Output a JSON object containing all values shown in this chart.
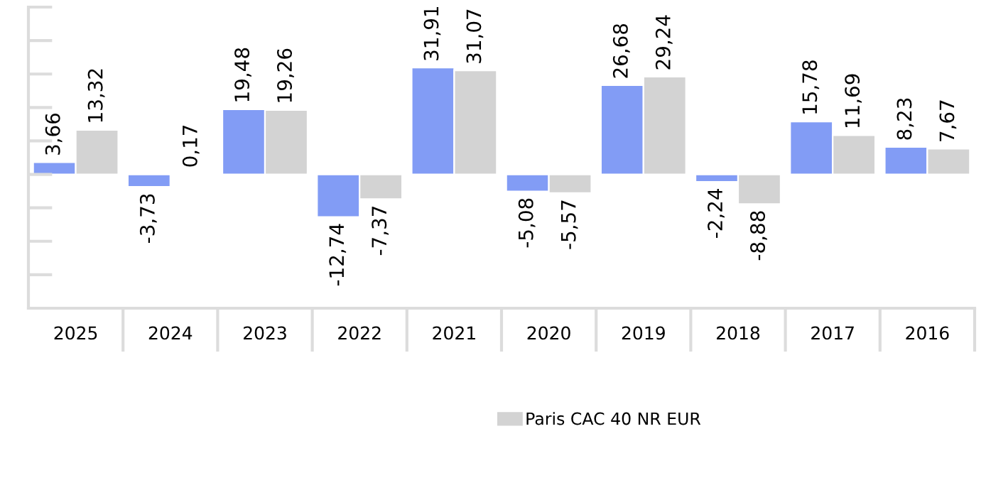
{
  "chart_data": {
    "type": "bar",
    "categories": [
      "2025",
      "2024",
      "2023",
      "2022",
      "2021",
      "2020",
      "2019",
      "2018",
      "2017",
      "2016"
    ],
    "series": [
      {
        "color": "#829cf5",
        "values": [
          3.66,
          -3.73,
          19.48,
          -12.74,
          31.91,
          -5.08,
          26.68,
          -2.24,
          15.78,
          8.23
        ],
        "value_labels": [
          "3,66",
          "-3,73",
          "19,48",
          "-12,74",
          "31,91",
          "-5,08",
          "26,68",
          "-2,24",
          "15,78",
          "8,23"
        ]
      },
      {
        "name": "Paris CAC 40 NR EUR",
        "color": "#d3d3d3",
        "values": [
          13.32,
          0.17,
          19.26,
          -7.37,
          31.07,
          -5.57,
          29.24,
          -8.88,
          11.69,
          7.67
        ],
        "value_labels": [
          "13,32",
          "0,17",
          "19,26",
          "-7,37",
          "31,07",
          "-5,57",
          "29,24",
          "-8,88",
          "11,69",
          "7,67"
        ]
      }
    ],
    "ylim": [
      -40,
      50
    ],
    "tick_labels": "x",
    "legend": "bottom"
  }
}
